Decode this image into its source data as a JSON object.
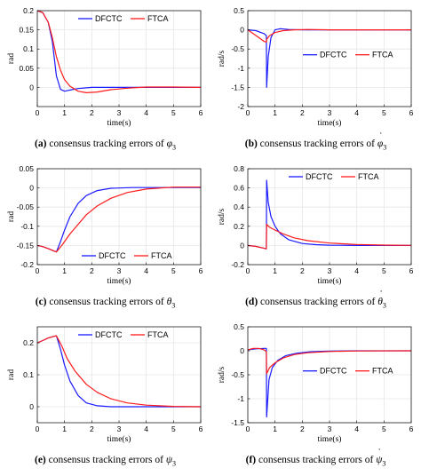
{
  "colors": {
    "DFCTC": "#1a1aff",
    "FTCA": "#ff1a1a",
    "grid": "#e6e6e6",
    "axis": "#000000"
  },
  "chart_data": [
    {
      "type": "line",
      "panel_label": "(a)",
      "caption": "consensus tracking errors of",
      "symbol": "φ",
      "sub": "3",
      "dot": false,
      "xlabel": "time(s)",
      "ylabel": "rad",
      "xlim": [
        0,
        6
      ],
      "ylim": [
        -0.05,
        0.2
      ],
      "xticks": [
        "0",
        "1",
        "2",
        "3",
        "4",
        "5",
        "6"
      ],
      "yticks": [
        "0",
        "0.05",
        "0.1",
        "0.15",
        "0.2"
      ],
      "ytick_values": [
        0,
        0.05,
        0.1,
        0.15,
        0.2
      ],
      "grid": true,
      "legend_position": "top-right",
      "series": [
        {
          "name": "DFCTC",
          "x": [
            0,
            0.2,
            0.4,
            0.55,
            0.7,
            0.85,
            1.0,
            1.2,
            1.5,
            2,
            3,
            4,
            6
          ],
          "y": [
            0.2,
            0.195,
            0.17,
            0.12,
            0.03,
            -0.005,
            -0.01,
            -0.007,
            -0.003,
            0,
            0,
            0,
            0
          ]
        },
        {
          "name": "FTCA",
          "x": [
            0,
            0.2,
            0.4,
            0.55,
            0.7,
            0.85,
            1.0,
            1.2,
            1.5,
            1.8,
            2.2,
            2.7,
            3.3,
            4,
            5,
            6
          ],
          "y": [
            0.2,
            0.195,
            0.17,
            0.13,
            0.08,
            0.045,
            0.02,
            0.003,
            -0.01,
            -0.014,
            -0.012,
            -0.006,
            -0.002,
            0.001,
            0.001,
            0
          ]
        }
      ]
    },
    {
      "type": "line",
      "panel_label": "(b)",
      "caption": "consensus tracking errors of",
      "symbol": "φ",
      "sub": "3",
      "dot": true,
      "xlabel": "time(s)",
      "ylabel": "rad/s",
      "xlim": [
        0,
        6
      ],
      "ylim": [
        -2,
        0.5
      ],
      "xticks": [
        "0",
        "1",
        "2",
        "3",
        "4",
        "5",
        "6"
      ],
      "yticks": [
        "-2",
        "-1.5",
        "-1",
        "-0.5",
        "0",
        "0.5"
      ],
      "ytick_values": [
        -2,
        -1.5,
        -1,
        -0.5,
        0,
        0.5
      ],
      "grid": true,
      "legend_position": "center-right",
      "series": [
        {
          "name": "DFCTC",
          "x": [
            0,
            0.3,
            0.6,
            0.68,
            0.69,
            0.75,
            0.85,
            1.0,
            1.2,
            1.5,
            2,
            6
          ],
          "y": [
            0,
            -0.02,
            -0.1,
            -0.15,
            -1.5,
            -0.7,
            -0.2,
            0,
            0.03,
            0.01,
            0,
            0
          ]
        },
        {
          "name": "FTCA",
          "x": [
            0,
            0.2,
            0.4,
            0.6,
            0.68,
            0.69,
            0.8,
            1.0,
            1.3,
            1.7,
            2.2,
            3,
            4,
            6
          ],
          "y": [
            0,
            -0.1,
            -0.2,
            -0.3,
            -0.32,
            -0.25,
            -0.15,
            -0.07,
            -0.02,
            0,
            0.01,
            0,
            0,
            0
          ]
        }
      ]
    },
    {
      "type": "line",
      "panel_label": "(c)",
      "caption": "consensus tracking errors of",
      "symbol": "θ",
      "sub": "3",
      "dot": false,
      "xlabel": "time(s)",
      "ylabel": "rad",
      "xlim": [
        0,
        6
      ],
      "ylim": [
        -0.2,
        0.05
      ],
      "xticks": [
        "0",
        "1",
        "2",
        "3",
        "4",
        "5",
        "6"
      ],
      "yticks": [
        "-0.2",
        "-0.15",
        "-0.1",
        "-0.05",
        "0",
        "0.05"
      ],
      "ytick_values": [
        -0.2,
        -0.15,
        -0.1,
        -0.05,
        0,
        0.05
      ],
      "grid": true,
      "legend_position": "bottom-right",
      "series": [
        {
          "name": "DFCTC",
          "x": [
            0,
            0.2,
            0.4,
            0.6,
            0.7,
            0.85,
            1.0,
            1.2,
            1.5,
            1.8,
            2.2,
            2.7,
            3.5,
            6
          ],
          "y": [
            -0.15,
            -0.153,
            -0.158,
            -0.164,
            -0.167,
            -0.14,
            -0.11,
            -0.075,
            -0.04,
            -0.02,
            -0.007,
            -0.001,
            0.001,
            0.001
          ]
        },
        {
          "name": "FTCA",
          "x": [
            0,
            0.2,
            0.4,
            0.6,
            0.7,
            0.9,
            1.2,
            1.5,
            1.8,
            2.2,
            2.7,
            3.3,
            4,
            5,
            6
          ],
          "y": [
            -0.15,
            -0.153,
            -0.158,
            -0.164,
            -0.167,
            -0.15,
            -0.12,
            -0.095,
            -0.07,
            -0.047,
            -0.027,
            -0.012,
            -0.003,
            0.002,
            0.002
          ]
        }
      ]
    },
    {
      "type": "line",
      "panel_label": "(d)",
      "caption": "consensus tracking errors of",
      "symbol": "θ",
      "sub": "3",
      "dot": true,
      "xlabel": "time(s)",
      "ylabel": "rad/s",
      "xlim": [
        0,
        6
      ],
      "ylim": [
        -0.2,
        0.8
      ],
      "xticks": [
        "0",
        "1",
        "2",
        "3",
        "4",
        "5",
        "6"
      ],
      "yticks": [
        "-0.2",
        "0",
        "0.2",
        "0.4",
        "0.6",
        "0.8"
      ],
      "ytick_values": [
        -0.2,
        0,
        0.2,
        0.4,
        0.6,
        0.8
      ],
      "grid": true,
      "legend_position": "top-right",
      "series": [
        {
          "name": "DFCTC",
          "x": [
            0,
            0.3,
            0.6,
            0.68,
            0.69,
            0.75,
            0.85,
            1.0,
            1.2,
            1.5,
            2,
            2.5,
            3,
            4,
            6
          ],
          "y": [
            0,
            -0.01,
            -0.03,
            -0.035,
            0.68,
            0.45,
            0.3,
            0.2,
            0.12,
            0.06,
            0.02,
            0.008,
            0.003,
            0,
            0
          ]
        },
        {
          "name": "FTCA",
          "x": [
            0,
            0.3,
            0.6,
            0.68,
            0.69,
            0.8,
            1.0,
            1.3,
            1.7,
            2.2,
            3,
            4,
            5,
            6
          ],
          "y": [
            0,
            -0.01,
            -0.03,
            -0.035,
            0.22,
            0.19,
            0.16,
            0.12,
            0.08,
            0.05,
            0.025,
            0.01,
            0.004,
            0.001
          ]
        }
      ]
    },
    {
      "type": "line",
      "panel_label": "(e)",
      "caption": "consensus tracking errors of",
      "symbol": "ψ",
      "sub": "3",
      "dot": false,
      "xlabel": "time(s)",
      "ylabel": "rad",
      "xlim": [
        0,
        6
      ],
      "ylim": [
        -0.05,
        0.25
      ],
      "xticks": [
        "0",
        "1",
        "2",
        "3",
        "4",
        "5",
        "6"
      ],
      "yticks": [
        "0",
        "0.1",
        "0.2"
      ],
      "ytick_values": [
        0,
        0.1,
        0.2
      ],
      "grid": true,
      "legend_position": "top-right",
      "series": [
        {
          "name": "DFCTC",
          "x": [
            0,
            0.2,
            0.4,
            0.6,
            0.7,
            0.85,
            1.0,
            1.2,
            1.5,
            1.8,
            2.2,
            2.7,
            3.5,
            6
          ],
          "y": [
            0.2,
            0.207,
            0.215,
            0.22,
            0.222,
            0.18,
            0.13,
            0.08,
            0.035,
            0.012,
            0.003,
            0,
            0,
            0
          ]
        },
        {
          "name": "FTCA",
          "x": [
            0,
            0.2,
            0.4,
            0.6,
            0.7,
            0.9,
            1.1,
            1.4,
            1.8,
            2.2,
            2.7,
            3.3,
            4,
            5,
            6
          ],
          "y": [
            0.2,
            0.207,
            0.215,
            0.22,
            0.222,
            0.19,
            0.15,
            0.11,
            0.07,
            0.045,
            0.025,
            0.012,
            0.005,
            0.001,
            0
          ]
        }
      ]
    },
    {
      "type": "line",
      "panel_label": "(f)",
      "caption": "consensus tracking errors of",
      "symbol": "ψ",
      "sub": "3",
      "dot": true,
      "xlabel": "time(s)",
      "ylabel": "rad/s",
      "xlim": [
        0,
        6
      ],
      "ylim": [
        -1.5,
        0.5
      ],
      "xticks": [
        "0",
        "1",
        "2",
        "3",
        "4",
        "5",
        "6"
      ],
      "yticks": [
        "-1.5",
        "-1",
        "-0.5",
        "0",
        "0.5"
      ],
      "ytick_values": [
        -1.5,
        -1,
        -0.5,
        0,
        0.5
      ],
      "grid": true,
      "legend_position": "center-right",
      "series": [
        {
          "name": "DFCTC",
          "x": [
            0,
            0.3,
            0.6,
            0.68,
            0.69,
            0.78,
            0.9,
            1.1,
            1.4,
            1.8,
            2.3,
            3,
            4,
            6
          ],
          "y": [
            0.02,
            0.04,
            0.05,
            0.05,
            -1.38,
            -0.6,
            -0.35,
            -0.2,
            -0.1,
            -0.05,
            -0.02,
            -0.005,
            0,
            0
          ]
        },
        {
          "name": "FTCA",
          "x": [
            0,
            0.2,
            0.4,
            0.6,
            0.68,
            0.69,
            0.8,
            1.0,
            1.3,
            1.7,
            2.2,
            3,
            4,
            6
          ],
          "y": [
            0.02,
            0.05,
            0.05,
            0.02,
            -0.02,
            -0.48,
            -0.35,
            -0.25,
            -0.15,
            -0.08,
            -0.04,
            -0.015,
            -0.003,
            0
          ]
        }
      ]
    }
  ]
}
